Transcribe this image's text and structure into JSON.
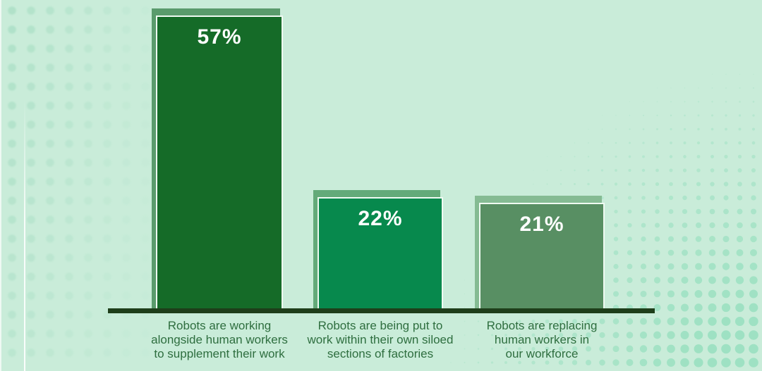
{
  "chart_data": {
    "type": "bar",
    "unit": "%",
    "values": [
      57,
      22,
      21
    ],
    "categories": [
      "Robots are working alongside human workers to supplement their work",
      "Robots are being put to work within their own siloed sections of factories",
      "Robots are replacing human workers in our workforce"
    ],
    "bars": [
      {
        "value_label": "57%",
        "label_lines": [
          "Robots are working",
          "alongside human workers",
          "to supplement their work"
        ],
        "fill": "#156b28",
        "shadow": "#5a9b6c"
      },
      {
        "value_label": "22%",
        "label_lines": [
          "Robots are being put to",
          "work within their own siloed",
          "sections of factories"
        ],
        "fill": "#07894d",
        "shadow": "#63aa79"
      },
      {
        "value_label": "21%",
        "label_lines": [
          "Robots are replacing",
          "human workers in",
          "our workforce"
        ],
        "fill": "#588f63",
        "shadow": "#85bb93"
      }
    ],
    "ylim": [
      0,
      57
    ],
    "grid": false,
    "legend": false,
    "axis_line_color": "#1e3e1a",
    "value_text_color": "#ffffff",
    "category_text_color": "#2e6e3f"
  },
  "decor": {
    "background_color": "#c9ecd9",
    "left_dots_color": "#9cd9bc",
    "right_dots_color": "#96dfbe",
    "white_line_color": "#ffffff"
  }
}
